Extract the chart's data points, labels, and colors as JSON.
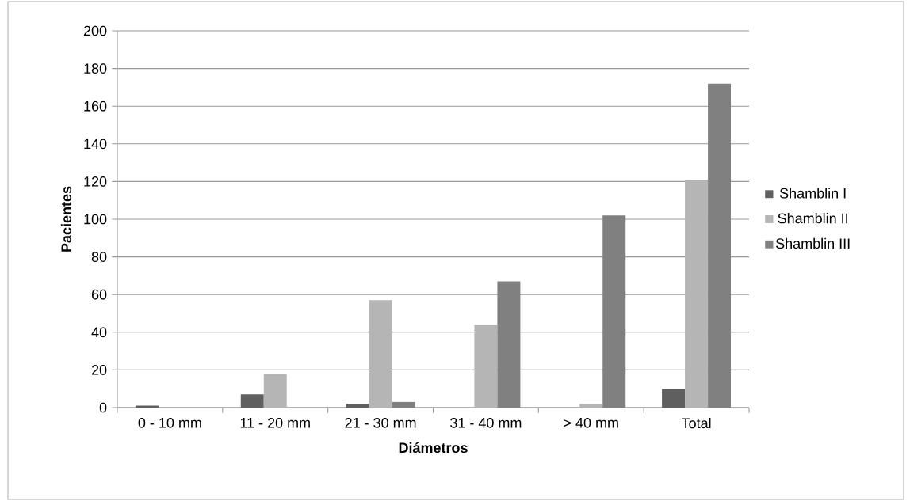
{
  "chart_data": {
    "type": "bar",
    "xlabel": "Diámetros",
    "ylabel": "Pacientes",
    "categories": [
      "0 - 10 mm",
      "11 - 20 mm",
      "21 - 30 mm",
      "31 - 40 mm",
      "> 40 mm",
      "Total"
    ],
    "series": [
      {
        "name": "Shamblin I",
        "color": "#5f5f5f",
        "values": [
          1,
          7,
          2,
          0,
          0,
          10
        ]
      },
      {
        "name": "Shamblin II",
        "color": "#b5b5b5",
        "values": [
          0,
          18,
          57,
          44,
          2,
          121
        ]
      },
      {
        "name": "Shamblin III",
        "color": "#808080",
        "values": [
          0,
          0,
          3,
          67,
          102,
          172
        ]
      }
    ],
    "ylim": [
      0,
      200
    ],
    "yticks": [
      0,
      20,
      40,
      60,
      80,
      100,
      120,
      140,
      160,
      180,
      200
    ],
    "grid": "y",
    "legend": "right"
  }
}
